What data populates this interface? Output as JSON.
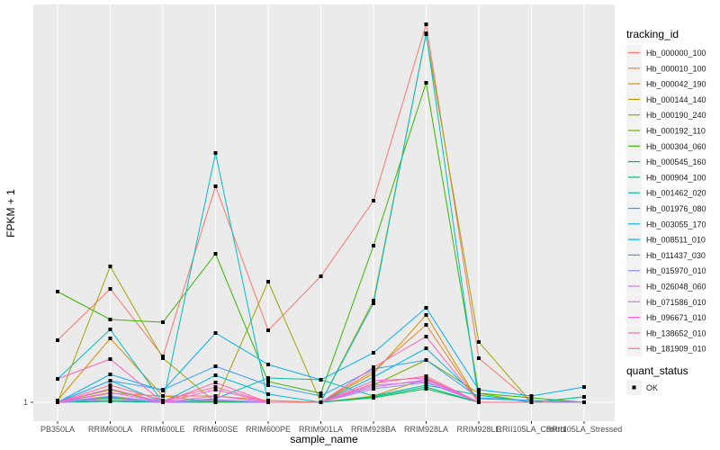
{
  "chart_data": {
    "type": "line",
    "title": "",
    "xlabel": "sample_name",
    "ylabel": "FPKM + 1",
    "ylim": [
      -1.1,
      45.2
    ],
    "y_ticks": [
      1
    ],
    "y_tick_labels": [
      "1"
    ],
    "grid": true,
    "legend_placement": "right",
    "categories": [
      "PB350LA",
      "RRIM600LA",
      "RRIM600LE",
      "RRIM600SE",
      "RRIM600PE",
      "RRIM901LA",
      "RRIM928BA",
      "RRIM928LA",
      "RRIM928LE",
      "RRII105LA_Control",
      "RRII105LA_Stressed"
    ],
    "legend_title": "tracking_id",
    "series": [
      {
        "name": "Hb_000000_100",
        "color": "#F8766D",
        "values": [
          7.9,
          13.6,
          6.1,
          25,
          9,
          15,
          23.4,
          43,
          5.9,
          1,
          1
        ]
      },
      {
        "name": "Hb_000010_100",
        "color": "#EA8331",
        "values": [
          1,
          2,
          1.7,
          1.7,
          1.2,
          1,
          4.5,
          9.6,
          1,
          1,
          1
        ]
      },
      {
        "name": "Hb_000042_190",
        "color": "#D89000",
        "values": [
          1.2,
          8.1,
          1.7,
          1,
          1,
          1,
          4.2,
          10.7,
          1,
          1,
          1
        ]
      },
      {
        "name": "Hb_000144_140",
        "color": "#C09B00",
        "values": [
          1,
          1.6,
          1,
          1,
          1,
          1,
          1.7,
          3.6,
          1,
          1,
          1
        ]
      },
      {
        "name": "Hb_000190_240",
        "color": "#A3A500",
        "values": [
          1,
          16.1,
          5.9,
          1,
          14.4,
          1,
          12.3,
          41.9,
          7.7,
          1,
          1
        ]
      },
      {
        "name": "Hb_000192_110",
        "color": "#7CAE00",
        "values": [
          1,
          2.4,
          1,
          1,
          1,
          1,
          2.9,
          5.7,
          2,
          1,
          1.6
        ]
      },
      {
        "name": "Hb_000304_060",
        "color": "#39B600",
        "values": [
          13.3,
          10.2,
          9.9,
          17.5,
          3.3,
          2,
          18.4,
          36.5,
          2,
          1.5,
          1
        ]
      },
      {
        "name": "Hb_000545_160",
        "color": "#00BB4E",
        "values": [
          1,
          1.2,
          1,
          1.2,
          1,
          1,
          1.5,
          2.5,
          1,
          1,
          1
        ]
      },
      {
        "name": "Hb_000904_100",
        "color": "#00BF7D",
        "values": [
          1,
          1.1,
          1,
          1.1,
          1,
          1,
          1.6,
          2.7,
          1,
          1,
          1
        ]
      },
      {
        "name": "Hb_001462_020",
        "color": "#00C1A3",
        "values": [
          1,
          1.5,
          1,
          1.4,
          3.7,
          3.5,
          1.7,
          2.9,
          1.8,
          1,
          1.6
        ]
      },
      {
        "name": "Hb_001976_080",
        "color": "#00BFC4",
        "values": [
          3.6,
          9.1,
          1,
          28.7,
          1,
          1,
          12,
          42,
          1,
          1,
          1
        ]
      },
      {
        "name": "Hb_003055_170",
        "color": "#00BAE0",
        "values": [
          1,
          3.4,
          1,
          4,
          1.9,
          1,
          3.8,
          7,
          1.4,
          1.2,
          1
        ]
      },
      {
        "name": "Hb_008511_010",
        "color": "#00B0F6",
        "values": [
          1,
          4.1,
          2.3,
          8.7,
          5.2,
          3.5,
          6.5,
          11.5,
          2.4,
          1.7,
          2.7
        ]
      },
      {
        "name": "Hb_011437_030",
        "color": "#35A2FF",
        "values": [
          1,
          3.4,
          2.4,
          5,
          2.9,
          1.7,
          4.7,
          5.7,
          1.5,
          1.2,
          1
        ]
      },
      {
        "name": "Hb_015970_010",
        "color": "#9590FF",
        "values": [
          1,
          1.7,
          1,
          1.2,
          1,
          1,
          2.5,
          3.2,
          1,
          1,
          1
        ]
      },
      {
        "name": "Hb_026048_060",
        "color": "#C77CFF",
        "values": [
          1,
          1.4,
          1,
          1.3,
          1,
          1,
          2.9,
          3.3,
          1,
          1,
          1
        ]
      },
      {
        "name": "Hb_071586_010",
        "color": "#E76BF3",
        "values": [
          1,
          2.1,
          1,
          1.7,
          1,
          1,
          2.7,
          3.5,
          1,
          1,
          1
        ]
      },
      {
        "name": "Hb_096671_010",
        "color": "#FA62DB",
        "values": [
          1,
          2.5,
          1,
          2.4,
          1,
          1,
          3.4,
          3.7,
          1,
          1,
          1
        ]
      },
      {
        "name": "Hb_138652_010",
        "color": "#FF62BC",
        "values": [
          3.6,
          5.8,
          1,
          3.2,
          1,
          1,
          4.9,
          8.3,
          1,
          1,
          1
        ]
      },
      {
        "name": "Hb_181909_010",
        "color": "#FF6C91",
        "values": [
          1,
          2.9,
          1.2,
          2.7,
          1,
          1,
          3.1,
          3.9,
          1,
          1,
          1
        ]
      }
    ],
    "shape_legend_title": "quant_status",
    "shape_legend_items": [
      "OK"
    ]
  }
}
